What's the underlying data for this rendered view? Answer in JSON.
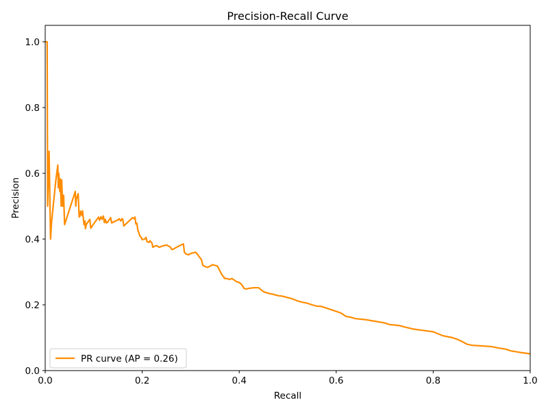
{
  "chart_data": {
    "type": "line",
    "title": "Precision-Recall Curve",
    "xlabel": "Recall",
    "ylabel": "Precision",
    "xlim": [
      0.0,
      1.0
    ],
    "ylim": [
      0.0,
      1.05
    ],
    "xticks": [
      "0.0",
      "0.2",
      "0.4",
      "0.6",
      "0.8",
      "1.0"
    ],
    "yticks": [
      "0.0",
      "0.2",
      "0.4",
      "0.6",
      "0.8",
      "1.0"
    ],
    "grid": false,
    "legend_position": "lower-left",
    "colors": {
      "series": "#ff8c00",
      "axes": "#000000"
    },
    "series": [
      {
        "name": "PR curve (AP = 0.26)",
        "x": [
          0.0,
          0.004,
          0.005,
          0.008,
          0.011,
          0.013,
          0.022,
          0.026,
          0.027,
          0.028,
          0.03,
          0.031,
          0.033,
          0.034,
          0.036,
          0.038,
          0.04,
          0.062,
          0.063,
          0.064,
          0.068,
          0.07,
          0.071,
          0.072,
          0.073,
          0.076,
          0.077,
          0.08,
          0.082,
          0.083,
          0.085,
          0.092,
          0.094,
          0.097,
          0.11,
          0.112,
          0.115,
          0.117,
          0.12,
          0.122,
          0.124,
          0.126,
          0.128,
          0.135,
          0.137,
          0.145,
          0.15,
          0.152,
          0.156,
          0.158,
          0.16,
          0.162,
          0.18,
          0.183,
          0.185,
          0.187,
          0.189,
          0.191,
          0.193,
          0.195,
          0.198,
          0.2,
          0.205,
          0.208,
          0.21,
          0.214,
          0.216,
          0.22,
          0.222,
          0.225,
          0.23,
          0.235,
          0.24,
          0.245,
          0.25,
          0.255,
          0.258,
          0.26,
          0.262,
          0.28,
          0.285,
          0.287,
          0.29,
          0.295,
          0.3,
          0.31,
          0.315,
          0.318,
          0.322,
          0.325,
          0.328,
          0.33,
          0.335,
          0.34,
          0.345,
          0.35,
          0.355,
          0.358,
          0.362,
          0.365,
          0.368,
          0.37,
          0.375,
          0.38,
          0.385,
          0.39,
          0.395,
          0.4,
          0.405,
          0.41,
          0.415,
          0.42,
          0.43,
          0.44,
          0.445,
          0.45,
          0.46,
          0.47,
          0.48,
          0.49,
          0.5,
          0.51,
          0.52,
          0.53,
          0.54,
          0.55,
          0.56,
          0.57,
          0.58,
          0.59,
          0.6,
          0.61,
          0.62,
          0.63,
          0.64,
          0.66,
          0.68,
          0.7,
          0.71,
          0.73,
          0.74,
          0.76,
          0.78,
          0.8,
          0.81,
          0.82,
          0.84,
          0.85,
          0.86,
          0.87,
          0.88,
          0.9,
          0.92,
          0.93,
          0.95,
          0.96,
          0.98,
          1.0
        ],
        "y": [
          1.0,
          1.0,
          0.5,
          0.667,
          0.4,
          0.45,
          0.58,
          0.625,
          0.556,
          0.6,
          0.545,
          0.583,
          0.5,
          0.58,
          0.5,
          0.533,
          0.444,
          0.545,
          0.5,
          0.52,
          0.538,
          0.467,
          0.48,
          0.47,
          0.485,
          0.472,
          0.486,
          0.444,
          0.455,
          0.432,
          0.445,
          0.46,
          0.433,
          0.44,
          0.467,
          0.457,
          0.468,
          0.46,
          0.47,
          0.45,
          0.46,
          0.449,
          0.45,
          0.465,
          0.449,
          0.455,
          0.458,
          0.462,
          0.455,
          0.462,
          0.46,
          0.44,
          0.465,
          0.462,
          0.467,
          0.446,
          0.448,
          0.427,
          0.42,
          0.41,
          0.405,
          0.398,
          0.4,
          0.405,
          0.392,
          0.39,
          0.395,
          0.388,
          0.375,
          0.378,
          0.38,
          0.375,
          0.378,
          0.38,
          0.382,
          0.378,
          0.376,
          0.37,
          0.368,
          0.382,
          0.385,
          0.36,
          0.355,
          0.352,
          0.356,
          0.36,
          0.352,
          0.345,
          0.338,
          0.32,
          0.318,
          0.316,
          0.314,
          0.318,
          0.322,
          0.32,
          0.318,
          0.31,
          0.298,
          0.29,
          0.285,
          0.28,
          0.28,
          0.277,
          0.28,
          0.275,
          0.27,
          0.268,
          0.262,
          0.25,
          0.248,
          0.25,
          0.252,
          0.252,
          0.246,
          0.24,
          0.235,
          0.232,
          0.228,
          0.226,
          0.222,
          0.218,
          0.212,
          0.208,
          0.205,
          0.2,
          0.196,
          0.195,
          0.19,
          0.185,
          0.18,
          0.175,
          0.165,
          0.162,
          0.158,
          0.155,
          0.15,
          0.145,
          0.14,
          0.137,
          0.133,
          0.126,
          0.122,
          0.118,
          0.112,
          0.106,
          0.1,
          0.095,
          0.088,
          0.08,
          0.077,
          0.075,
          0.073,
          0.07,
          0.065,
          0.06,
          0.055,
          0.051
        ]
      }
    ]
  }
}
